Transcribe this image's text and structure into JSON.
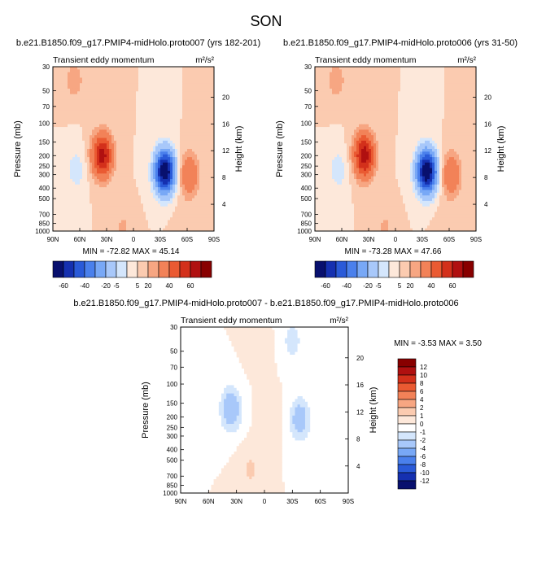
{
  "season": "SON",
  "units": "m²/s²",
  "chart_data": [
    {
      "type": "heatmap",
      "id": "panel-left",
      "case_title": "b.e21.B1850.f09_g17.PMIP4-midHolo.proto007 (yrs 182-201)",
      "title": "Transient eddy momentum",
      "units": "m²/s²",
      "xlabel": "",
      "ylabel": "Pressure (mb)",
      "ylabel_right": "Height (km)",
      "x_ticks": [
        "90N",
        "60N",
        "30N",
        "0",
        "30S",
        "60S",
        "90S"
      ],
      "y_ticks": [
        "30",
        "50",
        "70",
        "100",
        "150",
        "200",
        "250",
        "300",
        "400",
        "500",
        "700",
        "850",
        "1000"
      ],
      "height_ticks": [
        "20",
        "16",
        "12",
        "8",
        "4"
      ],
      "min": -72.82,
      "max": 45.14,
      "stats": "MIN = -72.82  MAX =  45.14",
      "features": [
        {
          "lat": 35,
          "p": 200,
          "value": 45
        },
        {
          "lat": -35,
          "p": 280,
          "value": -72
        },
        {
          "lat": 66,
          "p": 40,
          "value": 8
        },
        {
          "lat": -62,
          "p": 300,
          "value": 20
        },
        {
          "lat": 64,
          "p": 270,
          "value": -8
        },
        {
          "lat": 12,
          "p": 950,
          "value": 6
        },
        {
          "lat": -58,
          "p": 950,
          "value": 5
        }
      ]
    },
    {
      "type": "heatmap",
      "id": "panel-right",
      "case_title": "b.e21.B1850.f09_g17.PMIP4-midHolo.proto006 (yrs 31-50)",
      "title": "Transient eddy momentum",
      "units": "m²/s²",
      "xlabel": "",
      "ylabel": "Pressure (mb)",
      "ylabel_right": "Height (km)",
      "x_ticks": [
        "90N",
        "60N",
        "30N",
        "0",
        "30S",
        "60S",
        "90S"
      ],
      "y_ticks": [
        "30",
        "50",
        "70",
        "100",
        "150",
        "200",
        "250",
        "300",
        "400",
        "500",
        "700",
        "850",
        "1000"
      ],
      "height_ticks": [
        "20",
        "16",
        "12",
        "8",
        "4"
      ],
      "min": -73.28,
      "max": 47.66,
      "stats": "MIN = -73.28  MAX =  47.66",
      "features": [
        {
          "lat": 35,
          "p": 200,
          "value": 47
        },
        {
          "lat": -35,
          "p": 280,
          "value": -73
        },
        {
          "lat": 66,
          "p": 40,
          "value": 8
        },
        {
          "lat": -62,
          "p": 300,
          "value": 20
        },
        {
          "lat": 64,
          "p": 270,
          "value": -8
        },
        {
          "lat": 12,
          "p": 950,
          "value": 6
        },
        {
          "lat": -58,
          "p": 950,
          "value": 5
        }
      ]
    },
    {
      "type": "heatmap",
      "id": "panel-diff",
      "case_title": "b.e21.B1850.f09_g17.PMIP4-midHolo.proto007 - b.e21.B1850.f09_g17.PMIP4-midHolo.proto006",
      "title": "Transient eddy momentum",
      "units": "m²/s²",
      "xlabel": "",
      "ylabel": "Pressure (mb)",
      "ylabel_right": "Height (km)",
      "x_ticks": [
        "90N",
        "60N",
        "30N",
        "0",
        "30S",
        "60S",
        "90S"
      ],
      "y_ticks": [
        "30",
        "50",
        "70",
        "100",
        "150",
        "200",
        "250",
        "300",
        "400",
        "500",
        "700",
        "850",
        "1000"
      ],
      "height_ticks": [
        "20",
        "16",
        "12",
        "8",
        "4"
      ],
      "min": -3.53,
      "max": 3.5,
      "stats": "MIN = -3.53  MAX =  3.50",
      "features": [
        {
          "lat": 36,
          "p": 170,
          "value": -3.5
        },
        {
          "lat": -38,
          "p": 210,
          "value": -3.0
        },
        {
          "lat": -30,
          "p": 40,
          "value": -1.5
        },
        {
          "lat": 15,
          "p": 600,
          "value": 1.2
        },
        {
          "lat": -5,
          "p": 200,
          "value": 0.8
        },
        {
          "lat": 70,
          "p": 150,
          "value": -1.0
        },
        {
          "lat": 5,
          "p": 50,
          "value": 0.6
        }
      ]
    }
  ],
  "colorbars": {
    "full": {
      "colors": [
        "#08106e",
        "#1530b0",
        "#2a5ad8",
        "#4a80ec",
        "#78a8f6",
        "#a8c8fa",
        "#d4e6fc",
        "#fde8da",
        "#fbcbb0",
        "#f7a682",
        "#f28258",
        "#ea5a32",
        "#d3301b",
        "#b01010",
        "#880000"
      ],
      "labels": [
        "-60",
        "-40",
        "-20",
        "-5",
        "5",
        "20",
        "40",
        "60"
      ],
      "levels": [
        -60,
        -50,
        -40,
        -30,
        -20,
        -10,
        -5,
        0,
        5,
        10,
        20,
        30,
        40,
        50,
        60
      ]
    },
    "diff": {
      "colors": [
        "#08106e",
        "#1530b0",
        "#2a5ad8",
        "#4a80ec",
        "#78a8f6",
        "#a8c8fa",
        "#d4e6fc",
        "#ffffff",
        "#fde8da",
        "#fbcbb0",
        "#f7a682",
        "#f28258",
        "#ea5a32",
        "#d3301b",
        "#b01010",
        "#880000"
      ],
      "labels": [
        "12",
        "10",
        "8",
        "6",
        "4",
        "2",
        "1",
        "0",
        "-1",
        "-2",
        "-4",
        "-6",
        "-8",
        "-10",
        "-12"
      ],
      "levels": [
        -12,
        -10,
        -8,
        -6,
        -4,
        -2,
        -1,
        0,
        1,
        2,
        4,
        6,
        8,
        10,
        12
      ]
    }
  }
}
